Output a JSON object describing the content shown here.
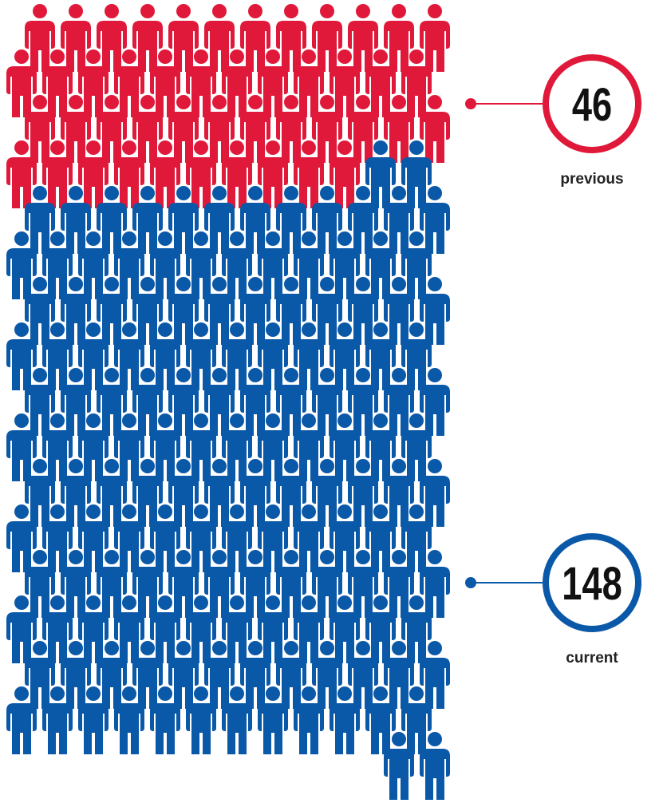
{
  "chart_data": {
    "type": "pictograph",
    "series": [
      {
        "name": "previous",
        "color": "#e0193a",
        "values": [
          46
        ]
      },
      {
        "name": "current",
        "color": "#0a58a8",
        "values": [
          148
        ]
      }
    ]
  }
}
